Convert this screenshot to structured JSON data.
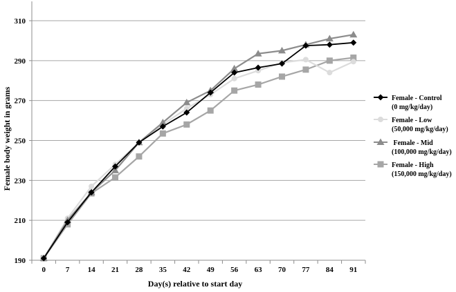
{
  "chart_data": {
    "type": "line",
    "xlabel": "Day(s) relative  to start day",
    "ylabel": "Female body weight in grams",
    "ylim": [
      190,
      310
    ],
    "yticks": [
      190,
      210,
      230,
      250,
      270,
      290,
      310
    ],
    "grid": "horizontal",
    "legend_position": "right",
    "categories": [
      "0",
      "7",
      "14",
      "21",
      "28",
      "35",
      "42",
      "49",
      "56",
      "63",
      "70",
      "77",
      "84",
      "91"
    ],
    "series": [
      {
        "name_line1": "Female - Control",
        "name_line2": "(0 mg/kg/day)",
        "color": "#000000",
        "line_color": "#000000",
        "marker": "diamond",
        "values": [
          191,
          209,
          224,
          237,
          249,
          257,
          264,
          274,
          284,
          286.5,
          288.5,
          297.5,
          298,
          299
        ]
      },
      {
        "name_line1": "Female - Low",
        "name_line2": "(50,000 mg/kg/day)",
        "color": "#dcdcdc",
        "line_color": "#dcdcdc",
        "marker": "circle",
        "values": [
          191,
          211,
          227,
          238,
          249,
          258,
          266,
          273,
          281,
          285,
          289,
          290.5,
          284,
          289.5
        ]
      },
      {
        "name_line1": " Female - Mid",
        "name_line2": "(100,000 mg/kg/day)",
        "color": "#8c8c8c",
        "line_color": "#8c8c8c",
        "marker": "triangle",
        "values": [
          191,
          210,
          224,
          235,
          249,
          259,
          269,
          275,
          286,
          293.5,
          295,
          298,
          301,
          303
        ]
      },
      {
        "name_line1": "Female - High",
        "name_line2": "(150,000 mg/kg/day)",
        "color": "#a6a6a6",
        "line_color": "#a6a6a6",
        "marker": "square",
        "values": [
          191,
          208,
          223.5,
          231.5,
          242,
          253.5,
          258,
          265,
          275,
          278,
          282,
          285.5,
          290,
          291.5
        ]
      }
    ]
  }
}
